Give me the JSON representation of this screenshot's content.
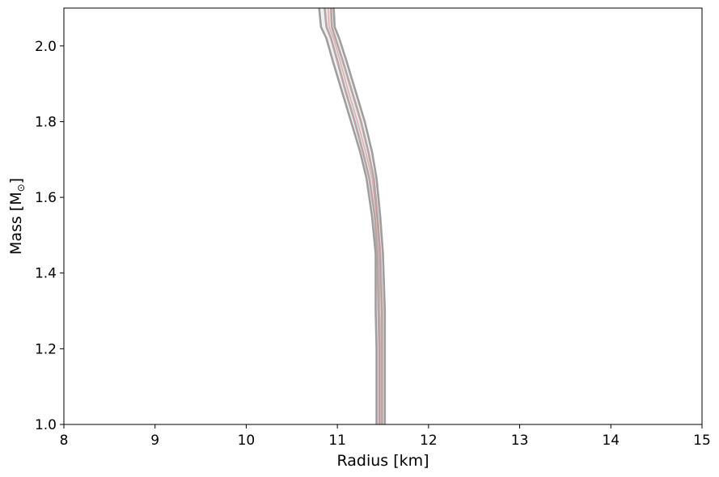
{
  "chart_data": {
    "type": "line",
    "title": "",
    "xlabel": "Radius [km]",
    "ylabel_main": "Mass [M",
    "ylabel_sub": "⊙",
    "ylabel_close": "]",
    "xlim": [
      8,
      15
    ],
    "ylim": [
      1.0,
      2.1
    ],
    "x_ticks": [
      8,
      9,
      10,
      11,
      12,
      13,
      14,
      15
    ],
    "x_tick_labels": [
      "8",
      "9",
      "10",
      "11",
      "12",
      "13",
      "14",
      "15"
    ],
    "y_ticks": [
      1.0,
      1.2,
      1.4,
      1.6,
      1.8,
      2.0
    ],
    "y_tick_labels": [
      "1.0",
      "1.2",
      "1.4",
      "1.6",
      "1.8",
      "2.0"
    ],
    "grid": false,
    "legend": "none",
    "colors": {
      "contour_gray": "#a29d9d",
      "contour_inner": "#b4a6a4",
      "accent_pink": "#d98a90",
      "fill_light": "#e6e4e4",
      "fill_lighter": "#f1f0f0"
    },
    "series": [
      {
        "role": "outer-contour-left",
        "x": [
          11.43,
          11.43,
          11.42,
          11.42,
          11.38,
          11.32,
          11.25,
          11.15,
          11.05,
          10.95,
          10.88,
          10.82,
          10.8
        ],
        "y": [
          1.0,
          1.2,
          1.3,
          1.45,
          1.55,
          1.65,
          1.72,
          1.8,
          1.88,
          1.96,
          2.02,
          2.05,
          2.1
        ]
      },
      {
        "role": "outer-contour-right",
        "x": [
          11.52,
          11.52,
          11.52,
          11.5,
          11.47,
          11.43,
          11.38,
          11.3,
          11.2,
          11.1,
          11.02,
          10.97,
          10.96
        ],
        "y": [
          1.0,
          1.2,
          1.3,
          1.45,
          1.55,
          1.65,
          1.72,
          1.8,
          1.88,
          1.96,
          2.02,
          2.05,
          2.1
        ]
      },
      {
        "role": "inner-contour-left",
        "x": [
          11.46,
          11.46,
          11.45,
          11.44,
          11.41,
          11.35,
          11.28,
          11.19,
          11.09,
          11.0,
          10.93,
          10.88,
          10.86
        ],
        "y": [
          1.0,
          1.2,
          1.3,
          1.45,
          1.55,
          1.65,
          1.72,
          1.8,
          1.88,
          1.96,
          2.02,
          2.05,
          2.1
        ]
      },
      {
        "role": "inner-contour-right",
        "x": [
          11.49,
          11.49,
          11.49,
          11.47,
          11.44,
          11.4,
          11.34,
          11.26,
          11.16,
          11.06,
          10.98,
          10.94,
          10.93
        ],
        "y": [
          1.0,
          1.2,
          1.3,
          1.45,
          1.55,
          1.65,
          1.72,
          1.8,
          1.88,
          1.96,
          2.02,
          2.05,
          2.1
        ]
      },
      {
        "role": "core-contour",
        "x": [
          11.47,
          11.47,
          11.46,
          11.43,
          11.38,
          11.31,
          11.22,
          11.12,
          11.03,
          10.96,
          10.91,
          10.9
        ],
        "y": [
          1.0,
          1.25,
          1.45,
          1.55,
          1.65,
          1.72,
          1.8,
          1.88,
          1.96,
          2.02,
          2.05,
          2.1
        ]
      }
    ]
  }
}
